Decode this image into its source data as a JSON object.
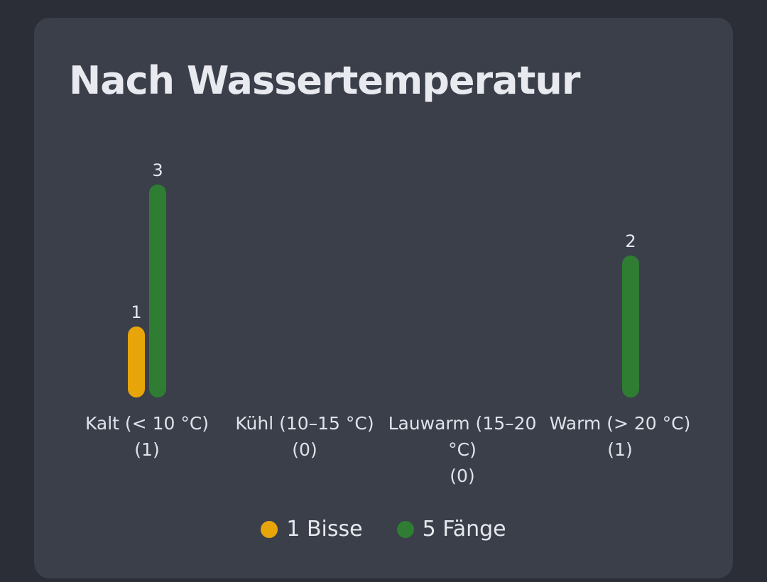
{
  "chart_data": {
    "type": "bar",
    "title": "Nach Wassertemperatur",
    "categories": [
      "Kalt (< 10 °C)",
      "Kühl (10–15 °C)",
      "Lauwarm (15–20 °C)",
      "Warm (> 20 °C)"
    ],
    "category_count_labels": [
      "(1)",
      "(0)",
      "(0)",
      "(1)"
    ],
    "series": [
      {
        "name": "1 Bisse",
        "color": "#e8a50a",
        "values": [
          1,
          0,
          0,
          0
        ]
      },
      {
        "name": "5 Fänge",
        "color": "#2e7d32",
        "values": [
          3,
          0,
          0,
          2
        ]
      }
    ]
  }
}
